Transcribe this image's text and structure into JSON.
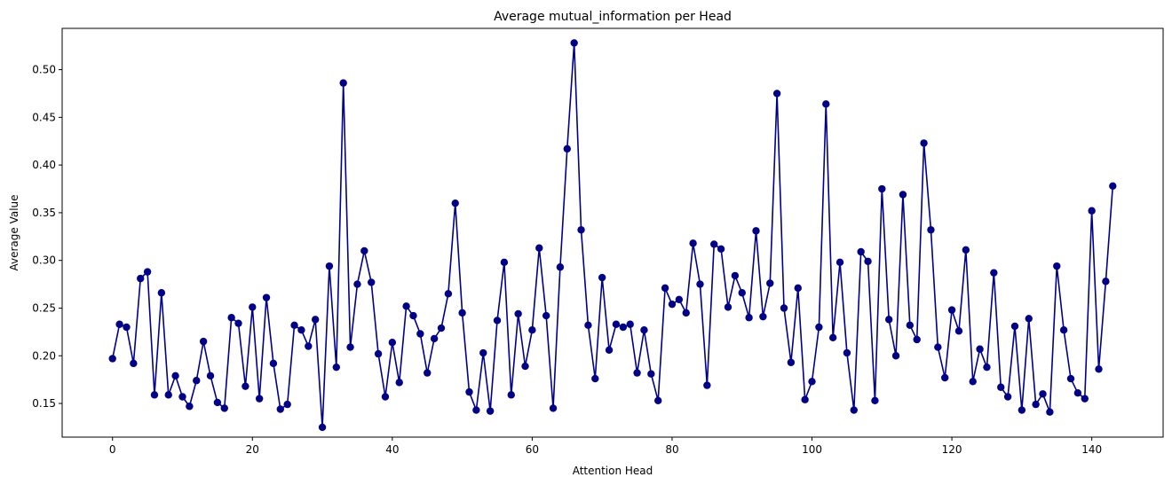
{
  "chart_data": {
    "type": "line",
    "title": "Average mutual_information per Head",
    "xlabel": "Attention Head",
    "ylabel": "Average Value",
    "xlim": [
      -7.2,
      150.2
    ],
    "ylim": [
      0.1147,
      0.5433
    ],
    "xticks": [
      0,
      20,
      40,
      60,
      80,
      100,
      120,
      140
    ],
    "yticks": [
      0.15,
      0.2,
      0.25,
      0.3,
      0.35,
      0.4,
      0.45,
      0.5
    ],
    "ytick_labels": [
      "0.15",
      "0.20",
      "0.25",
      "0.30",
      "0.35",
      "0.40",
      "0.45",
      "0.50"
    ],
    "grid": false,
    "series": [
      {
        "color": "#00008b",
        "marker": "circle",
        "values": [
          0.197,
          0.233,
          0.23,
          0.192,
          0.281,
          0.288,
          0.159,
          0.266,
          0.159,
          0.179,
          0.157,
          0.147,
          0.174,
          0.215,
          0.179,
          0.151,
          0.145,
          0.24,
          0.234,
          0.168,
          0.251,
          0.155,
          0.261,
          0.192,
          0.144,
          0.149,
          0.232,
          0.227,
          0.21,
          0.238,
          0.125,
          0.294,
          0.188,
          0.486,
          0.209,
          0.275,
          0.31,
          0.277,
          0.202,
          0.157,
          0.214,
          0.172,
          0.252,
          0.242,
          0.223,
          0.182,
          0.218,
          0.229,
          0.265,
          0.36,
          0.245,
          0.162,
          0.143,
          0.203,
          0.142,
          0.237,
          0.298,
          0.159,
          0.244,
          0.189,
          0.227,
          0.313,
          0.242,
          0.145,
          0.293,
          0.417,
          0.528,
          0.332,
          0.232,
          0.176,
          0.282,
          0.206,
          0.233,
          0.23,
          0.233,
          0.182,
          0.227,
          0.181,
          0.153,
          0.271,
          0.254,
          0.259,
          0.245,
          0.318,
          0.275,
          0.169,
          0.317,
          0.312,
          0.251,
          0.284,
          0.266,
          0.24,
          0.331,
          0.241,
          0.276,
          0.475,
          0.25,
          0.193,
          0.271,
          0.154,
          0.173,
          0.23,
          0.464,
          0.219,
          0.298,
          0.203,
          0.143,
          0.309,
          0.299,
          0.153,
          0.375,
          0.238,
          0.2,
          0.369,
          0.232,
          0.217,
          0.423,
          0.332,
          0.209,
          0.177,
          0.248,
          0.226,
          0.311,
          0.173,
          0.207,
          0.188,
          0.287,
          0.167,
          0.157,
          0.231,
          0.143,
          0.239,
          0.149,
          0.16,
          0.141,
          0.294,
          0.227,
          0.176,
          0.161,
          0.155,
          0.352,
          0.186,
          0.278,
          0.378
        ]
      }
    ]
  }
}
